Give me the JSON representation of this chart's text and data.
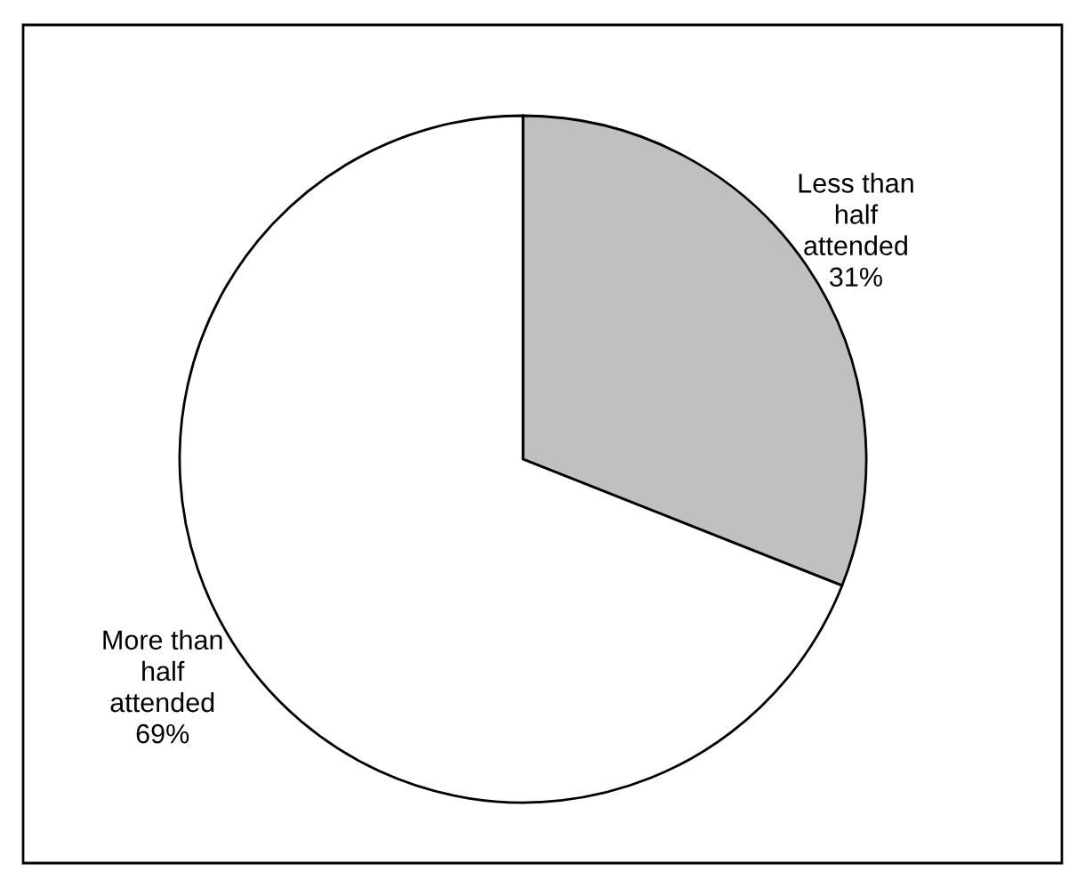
{
  "chart_data": {
    "type": "pie",
    "categories": [
      "Less than\nhalf\nattended",
      "More than\nhalf\nattended"
    ],
    "values": [
      31,
      69
    ],
    "value_labels": [
      "31%",
      "69%"
    ],
    "colors": [
      "#c0c0c0",
      "#ffffff"
    ]
  }
}
